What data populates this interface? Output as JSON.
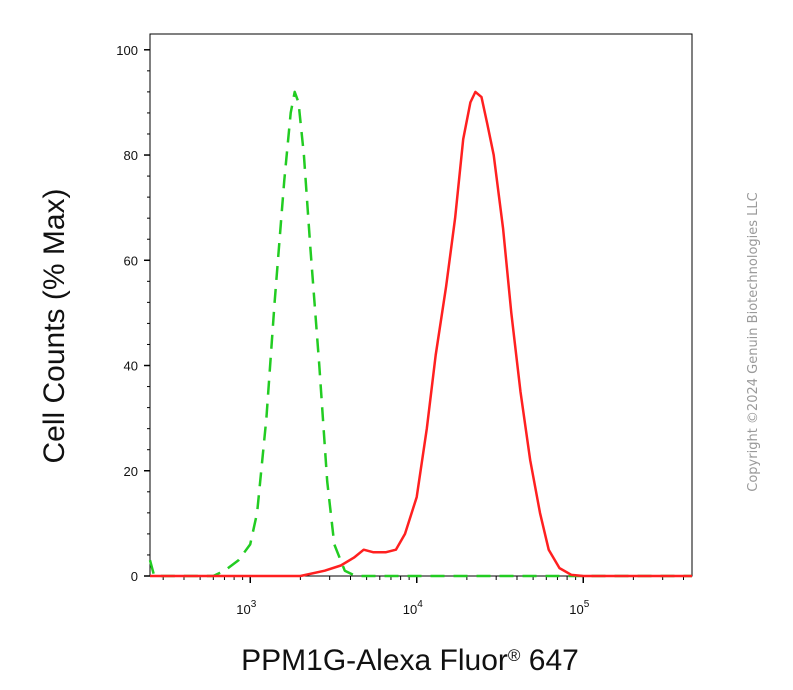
{
  "chart_data": {
    "type": "line",
    "xlabel_main": "PPM1G-Alexa Fluor",
    "xlabel_sup": "®",
    "xlabel_tail": " 647",
    "ylabel": "Cell Counts (% Max)",
    "x_scale": "log",
    "xlim": [
      250,
      450000
    ],
    "ylim": [
      0,
      103
    ],
    "x_tick_labels": [
      {
        "value": 1000,
        "base": "10",
        "exp": "3"
      },
      {
        "value": 10000,
        "base": "10",
        "exp": "4"
      },
      {
        "value": 100000,
        "base": "10",
        "exp": "5"
      }
    ],
    "y_ticks": [
      0,
      20,
      40,
      60,
      80,
      100
    ],
    "y_tick_labels": [
      "0",
      "20",
      "40",
      "60",
      "80",
      "100"
    ],
    "series": [
      {
        "color": "#22cc22",
        "style": "dashed",
        "points": [
          [
            250,
            3
          ],
          [
            265,
            0
          ],
          [
            600,
            0
          ],
          [
            700,
            1
          ],
          [
            850,
            3
          ],
          [
            1000,
            6
          ],
          [
            1100,
            12
          ],
          [
            1250,
            30
          ],
          [
            1400,
            52
          ],
          [
            1600,
            75
          ],
          [
            1750,
            88
          ],
          [
            1850,
            92
          ],
          [
            1950,
            90
          ],
          [
            2100,
            80
          ],
          [
            2300,
            62
          ],
          [
            2600,
            40
          ],
          [
            2900,
            18
          ],
          [
            3200,
            6
          ],
          [
            3700,
            1
          ],
          [
            4300,
            0
          ],
          [
            450000,
            0
          ]
        ]
      },
      {
        "color": "#ff2020",
        "style": "solid",
        "points": [
          [
            250,
            0
          ],
          [
            1000,
            0
          ],
          [
            2000,
            0
          ],
          [
            2800,
            1
          ],
          [
            3500,
            2
          ],
          [
            4200,
            3.5
          ],
          [
            4800,
            5
          ],
          [
            5500,
            4.5
          ],
          [
            6500,
            4.5
          ],
          [
            7500,
            5
          ],
          [
            8500,
            8
          ],
          [
            10000,
            15
          ],
          [
            11500,
            28
          ],
          [
            13000,
            42
          ],
          [
            15000,
            55
          ],
          [
            17000,
            68
          ],
          [
            19000,
            83
          ],
          [
            21000,
            90
          ],
          [
            22500,
            92
          ],
          [
            24500,
            91
          ],
          [
            26500,
            86
          ],
          [
            29000,
            80
          ],
          [
            33000,
            66
          ],
          [
            37000,
            50
          ],
          [
            42000,
            35
          ],
          [
            48000,
            22
          ],
          [
            55000,
            12
          ],
          [
            62000,
            5
          ],
          [
            72000,
            1.5
          ],
          [
            85000,
            0.2
          ],
          [
            100000,
            0
          ],
          [
            450000,
            0
          ]
        ]
      }
    ],
    "watermark": "Copyright ©2024 Genuin Biotechnologies LLC"
  }
}
